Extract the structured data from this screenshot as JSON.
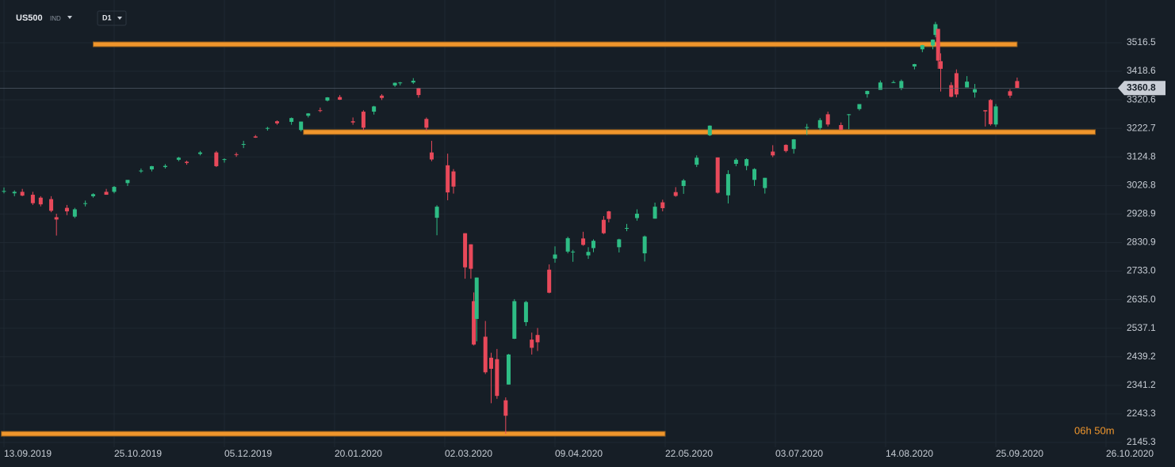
{
  "chart_data": {
    "type": "candlestick",
    "symbol": "US500",
    "instrument": "IND",
    "timeframe": "D1",
    "countdown": "06h 50m",
    "last_price": 3360.8,
    "up_color": "#2ebd85",
    "down_color": "#e8495a",
    "level_color": "#f0962c",
    "grid": true,
    "ylim": [
      2129,
      3663
    ],
    "yticks": [
      3516.5,
      3418.6,
      3320.6,
      3222.7,
      3124.8,
      3026.8,
      2928.9,
      2830.9,
      {
        "value": 2733,
        "label": "2733.0"
      },
      {
        "value": 2635,
        "label": "2635.0"
      },
      2537.1,
      2439.2,
      2341.2,
      2243.3,
      2145.3
    ],
    "xticks": [
      "13.09.2019",
      "25.10.2019",
      "05.12.2019",
      "20.01.2020",
      "02.03.2020",
      "09.04.2020",
      "22.05.2020",
      "03.07.2020",
      "14.08.2020",
      "25.09.2020",
      "26.10.2020"
    ],
    "levels": [
      {
        "value": 3511,
        "start": "17.10.2019",
        "end": "01.10.2020"
      },
      {
        "value": 3210,
        "start": "07.01.2020",
        "end": "23.10.2020"
      },
      {
        "value": 2175,
        "start": "12.09.2019",
        "end": "22.05.2020"
      }
    ],
    "x": [
      "13.09.2019",
      "17.09.2019",
      "20.09.2019",
      "24.09.2019",
      "27.09.2019",
      "01.10.2019",
      "03.10.2019",
      "07.10.2019",
      "10.10.2019",
      "14.10.2019",
      "17.10.2019",
      "22.10.2019",
      "25.10.2019",
      "30.10.2019",
      "04.11.2019",
      "08.11.2019",
      "13.11.2019",
      "18.11.2019",
      "21.11.2019",
      "26.11.2019",
      "02.12.2019",
      "05.12.2019",
      "10.12.2019",
      "13.12.2019",
      "18.12.2019",
      "23.12.2019",
      "27.12.2019",
      "02.01.2020",
      "06.01.2020",
      "09.01.2020",
      "14.01.2020",
      "17.01.2020",
      "22.01.2020",
      "27.01.2020",
      "31.01.2020",
      "04.02.2020",
      "07.02.2020",
      "12.02.2020",
      "14.02.2020",
      "19.02.2020",
      "21.02.2020",
      "24.02.2020",
      "26.02.2020",
      "28.02.2020",
      "03.03.2020",
      "05.03.2020",
      "09.03.2020",
      "11.03.2020",
      "12.03.2020",
      "13.03.2020",
      "16.03.2020",
      "18.03.2020",
      "20.03.2020",
      "23.03.2020",
      "24.03.2020",
      "26.03.2020",
      "30.03.2020",
      "01.04.2020",
      "03.04.2020",
      "07.04.2020",
      "09.04.2020",
      "14.04.2020",
      "16.04.2020",
      "20.04.2020",
      "22.04.2020",
      "24.04.2020",
      "28.04.2020",
      "30.04.2020",
      "04.05.2020",
      "07.05.2020",
      "11.05.2020",
      "14.05.2020",
      "18.05.2020",
      "21.05.2020",
      "26.05.2020",
      "29.05.2020",
      "03.06.2020",
      "08.06.2020",
      "11.06.2020",
      "15.06.2020",
      "18.06.2020",
      "22.06.2020",
      "25.06.2020",
      "29.06.2020",
      "02.07.2020",
      "07.07.2020",
      "10.07.2020",
      "15.07.2020",
      "20.07.2020",
      "23.07.2020",
      "28.07.2020",
      "31.07.2020",
      "04.08.2020",
      "07.08.2020",
      "12.08.2020",
      "17.08.2020",
      "20.08.2020",
      "25.08.2020",
      "28.08.2020",
      "01.09.2020",
      "02.09.2020",
      "03.09.2020",
      "04.09.2020",
      "08.09.2020",
      "10.09.2020",
      "14.09.2020",
      "17.09.2020",
      "21.09.2020",
      "23.09.2020",
      "25.09.2020",
      "29.09.2020",
      "01.10.2020"
    ],
    "open": [
      3007,
      3000,
      3005,
      2995,
      2985,
      2980,
      2918,
      2950,
      2920,
      2965,
      2990,
      3005,
      3005,
      3035,
      3075,
      3082,
      3090,
      3115,
      3108,
      3135,
      3140,
      3117,
      3134,
      3168,
      3195,
      3223,
      3247,
      3245,
      3217,
      3266,
      3285,
      3318,
      3330,
      3247,
      3280,
      3280,
      3335,
      3370,
      3378,
      3380,
      3360,
      3255,
      3140,
      2916,
      3096,
      3075,
      2863,
      2825,
      2630,
      2569,
      2508,
      2436,
      2431,
      2290,
      2344,
      2501,
      2558,
      2498,
      2514,
      2738,
      2776,
      2800,
      2799,
      2845,
      2787,
      2812,
      2909,
      2938,
      2815,
      2879,
      2915,
      2794,
      2913,
      2969,
      3004,
      3025,
      3098,
      3199,
      3123,
      2993,
      3101,
      3094,
      3046,
      3018,
      3143,
      3166,
      3152,
      3225,
      3224,
      3271,
      3234,
      3270,
      3289,
      3340,
      3355,
      3380,
      3360,
      3435,
      3494,
      3507,
      3543,
      3564,
      3453,
      3371,
      3412,
      3363,
      3346,
      3285,
      3320,
      3236,
      3350,
      3385
    ],
    "high": [
      3020,
      3010,
      3015,
      3005,
      2990,
      2990,
      2930,
      2960,
      2950,
      2975,
      3000,
      3015,
      3025,
      3045,
      3085,
      3094,
      3100,
      3125,
      3112,
      3145,
      3145,
      3120,
      3140,
      3180,
      3200,
      3228,
      3250,
      3260,
      3246,
      3275,
      3294,
      3330,
      3337,
      3260,
      3285,
      3300,
      3340,
      3380,
      3382,
      3395,
      3362,
      3260,
      3180,
      2959,
      3136,
      3083,
      2863,
      2825,
      2660,
      2711,
      2562,
      2453,
      2466,
      2300,
      2449,
      2637,
      2631,
      2522,
      2538,
      2756,
      2818,
      2851,
      2806,
      2868,
      2815,
      2842,
      2922,
      2940,
      2844,
      2895,
      2945,
      2855,
      2968,
      2978,
      3021,
      3049,
      3130,
      3233,
      3123,
      3079,
      3120,
      3120,
      3086,
      3053,
      3165,
      3168,
      3186,
      3238,
      3258,
      3280,
      3243,
      3272,
      3306,
      3352,
      3387,
      3387,
      3390,
      3444,
      3509,
      3528,
      3588,
      3564,
      3480,
      3381,
      3425,
      3402,
      3375,
      3285,
      3323,
      3306,
      3357,
      3397
    ],
    "low": [
      3000,
      2990,
      2990,
      2960,
      2955,
      2935,
      2855,
      2925,
      2915,
      2955,
      2985,
      2995,
      3000,
      3025,
      3070,
      3075,
      3085,
      3110,
      3098,
      3130,
      3090,
      3105,
      3125,
      3155,
      3190,
      3215,
      3235,
      3235,
      3212,
      3260,
      3278,
      3315,
      3320,
      3235,
      3215,
      3270,
      3320,
      3365,
      3370,
      3375,
      3328,
      3214,
      3110,
      2856,
      2976,
      2999,
      2707,
      2707,
      2478,
      2492,
      2380,
      2280,
      2295,
      2175,
      2344,
      2500,
      2545,
      2447,
      2459,
      2657,
      2762,
      2794,
      2765,
      2820,
      2775,
      2798,
      2860,
      2900,
      2797,
      2870,
      2906,
      2766,
      2913,
      2938,
      2988,
      2998,
      3090,
      3196,
      2999,
      2965,
      3093,
      3079,
      3025,
      2999,
      3124,
      3140,
      3136,
      3200,
      3216,
      3229,
      3216,
      3220,
      3284,
      3328,
      3355,
      3379,
      3354,
      3425,
      3484,
      3494,
      3535,
      3427,
      3349,
      3329,
      3329,
      3363,
      3328,
      3229,
      3232,
      3228,
      3327,
      3361
    ],
    "close": [
      3008,
      3005,
      2992,
      2966,
      2962,
      2940,
      2910,
      2938,
      2945,
      2966,
      2997,
      2995,
      3022,
      3046,
      3078,
      3093,
      3094,
      3122,
      3104,
      3140,
      3093,
      3117,
      3132,
      3169,
      3191,
      3224,
      3240,
      3258,
      3246,
      3274,
      3283,
      3329,
      3321,
      3243,
      3225,
      3298,
      3327,
      3379,
      3380,
      3386,
      3337,
      3225,
      3116,
      2954,
      3003,
      3023,
      2746,
      2741,
      2481,
      2711,
      2386,
      2398,
      2305,
      2237,
      2447,
      2630,
      2627,
      2470,
      2489,
      2659,
      2790,
      2846,
      2800,
      2823,
      2799,
      2837,
      2863,
      2912,
      2842,
      2881,
      2930,
      2852,
      2954,
      2949,
      2991,
      3044,
      3122,
      3232,
      3002,
      3066,
      3115,
      3117,
      3083,
      3053,
      3130,
      3145,
      3185,
      3227,
      3251,
      3236,
      3218,
      3271,
      3306,
      3351,
      3380,
      3381,
      3385,
      3443,
      3508,
      3527,
      3580,
      3455,
      3427,
      3331,
      3339,
      3383,
      3357,
      3281,
      3237,
      3298,
      3335,
      3361
    ]
  }
}
